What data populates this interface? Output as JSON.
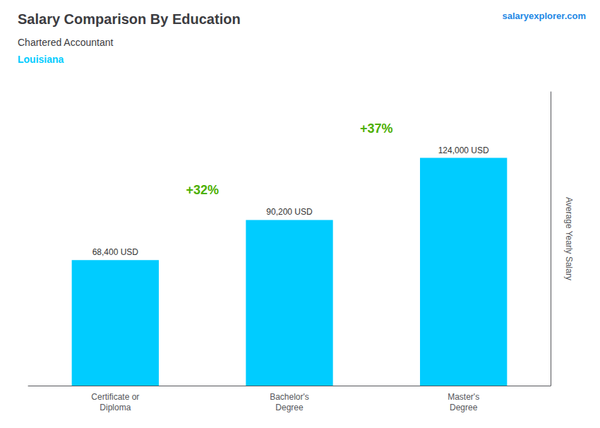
{
  "chart_data": {
    "type": "bar",
    "title": "Salary Comparison By Education",
    "subtitle": "Chartered Accountant",
    "location": "Louisiana",
    "watermark": "salaryexplorer.com",
    "ylabel": "Average Yearly Salary",
    "categories": [
      "Certificate or\nDiploma",
      "Bachelor's\nDegree",
      "Master's\nDegree"
    ],
    "values": [
      68400,
      90200,
      124000
    ],
    "value_labels": [
      "68,400 USD",
      "90,200 USD",
      "124,000 USD"
    ],
    "data_labels": true,
    "annotations": [
      "+32%",
      "+37%"
    ],
    "color": "#00ccff",
    "ylim": [
      0,
      160000
    ],
    "grid": false,
    "tick_labels": "x"
  }
}
